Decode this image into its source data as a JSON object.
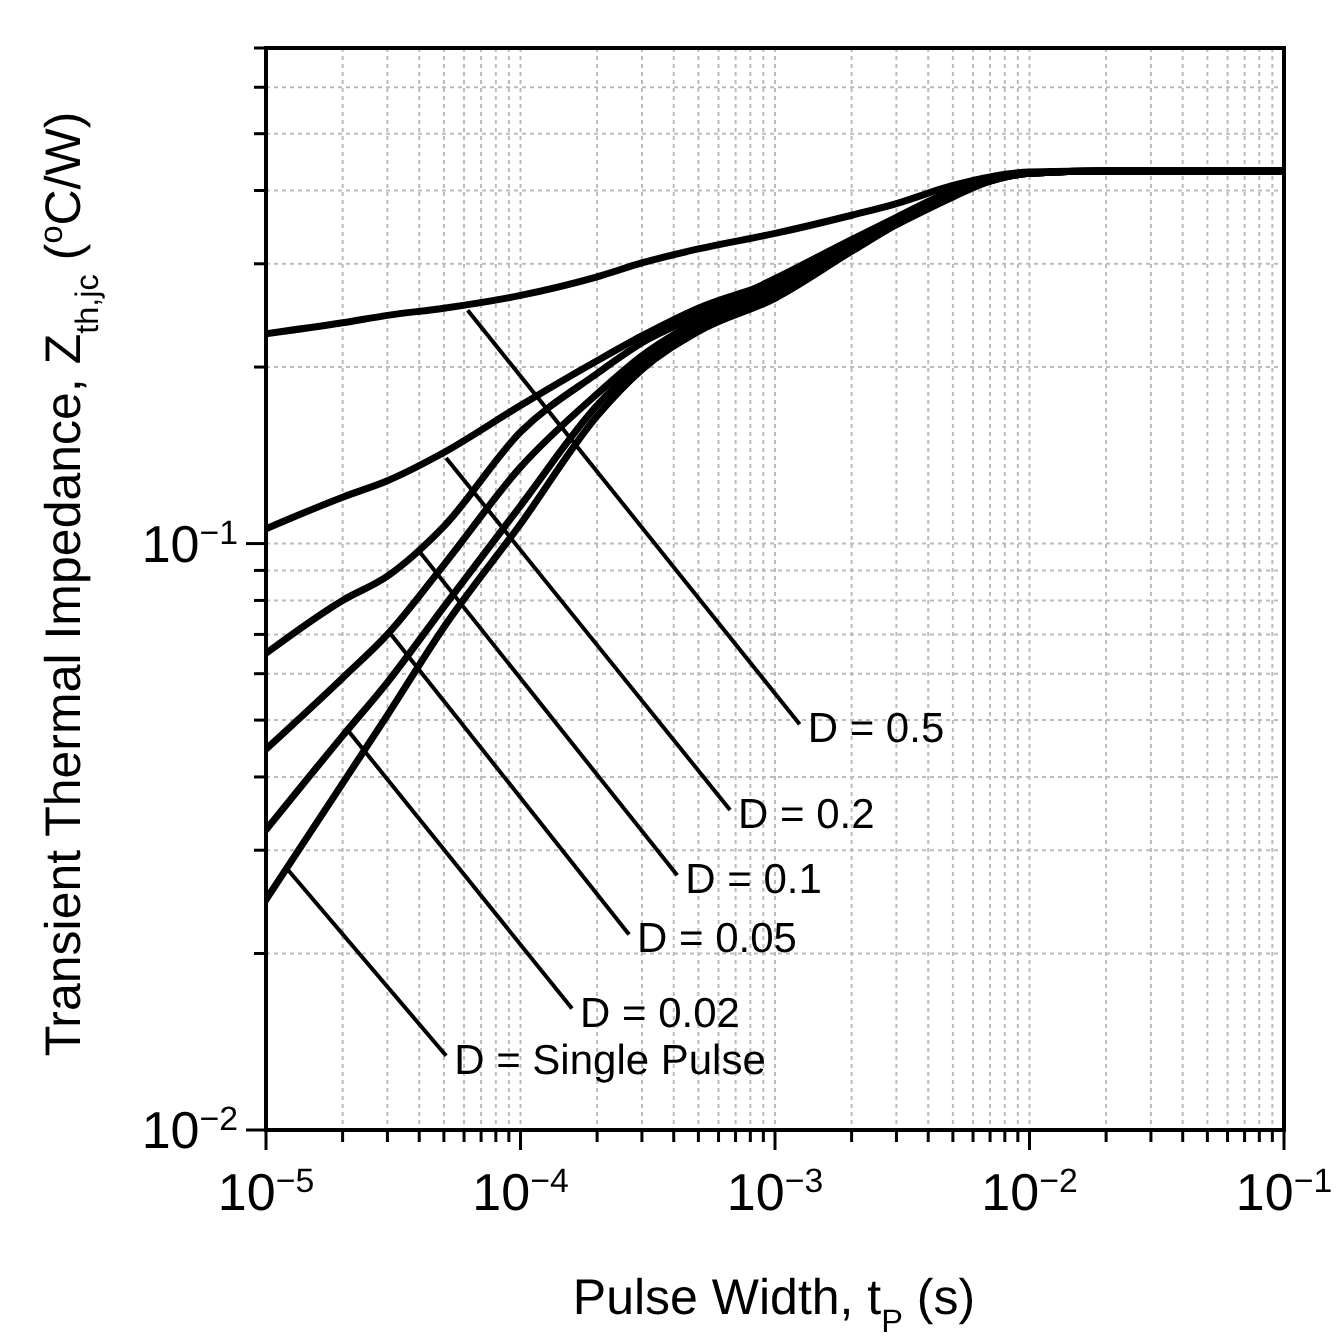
{
  "chart_data": {
    "type": "line",
    "xlabel": "Pulse Width, t$_{P}$ (s)",
    "ylabel": "Transient Thermal Impedance, Z$_{th,jc}$ ($^{o}$C/W)",
    "log": "xy",
    "grid": true,
    "xlim": [
      1e-05,
      0.1
    ],
    "ylim": [
      0.01,
      0.7
    ],
    "xticks": [
      {
        "value": 1e-05,
        "label": "10$^{−5}$"
      },
      {
        "value": 2e-05,
        "label": null
      },
      {
        "value": 3e-05,
        "label": null
      },
      {
        "value": 4e-05,
        "label": null
      },
      {
        "value": 5e-05,
        "label": null
      },
      {
        "value": 6e-05,
        "label": null
      },
      {
        "value": 7e-05,
        "label": null
      },
      {
        "value": 8e-05,
        "label": null
      },
      {
        "value": 9e-05,
        "label": null
      },
      {
        "value": 0.0001,
        "label": "10$^{−4}$"
      },
      {
        "value": 0.0002,
        "label": null
      },
      {
        "value": 0.0003,
        "label": null
      },
      {
        "value": 0.0004,
        "label": null
      },
      {
        "value": 0.0005,
        "label": null
      },
      {
        "value": 0.0006,
        "label": null
      },
      {
        "value": 0.0007,
        "label": null
      },
      {
        "value": 0.0008,
        "label": null
      },
      {
        "value": 0.0009,
        "label": null
      },
      {
        "value": 0.001,
        "label": "10$^{−3}$"
      },
      {
        "value": 0.002,
        "label": null
      },
      {
        "value": 0.003,
        "label": null
      },
      {
        "value": 0.004,
        "label": null
      },
      {
        "value": 0.005,
        "label": null
      },
      {
        "value": 0.006,
        "label": null
      },
      {
        "value": 0.007,
        "label": null
      },
      {
        "value": 0.008,
        "label": null
      },
      {
        "value": 0.009,
        "label": null
      },
      {
        "value": 0.01,
        "label": "10$^{−2}$"
      },
      {
        "value": 0.02,
        "label": null
      },
      {
        "value": 0.03,
        "label": null
      },
      {
        "value": 0.04,
        "label": null
      },
      {
        "value": 0.05,
        "label": null
      },
      {
        "value": 0.06,
        "label": null
      },
      {
        "value": 0.07,
        "label": null
      },
      {
        "value": 0.08,
        "label": null
      },
      {
        "value": 0.09,
        "label": null
      },
      {
        "value": 0.1,
        "label": "10$^{−1}$"
      }
    ],
    "yticks": [
      {
        "value": 0.01,
        "label": "10$^{−2}$"
      },
      {
        "value": 0.02,
        "label": null
      },
      {
        "value": 0.03,
        "label": null
      },
      {
        "value": 0.04,
        "label": null
      },
      {
        "value": 0.05,
        "label": null
      },
      {
        "value": 0.06,
        "label": null
      },
      {
        "value": 0.07,
        "label": null
      },
      {
        "value": 0.08,
        "label": null
      },
      {
        "value": 0.09,
        "label": null
      },
      {
        "value": 0.1,
        "label": "10$^{−1}$"
      },
      {
        "value": 0.2,
        "label": null
      },
      {
        "value": 0.3,
        "label": null
      },
      {
        "value": 0.4,
        "label": null
      },
      {
        "value": 0.5,
        "label": null
      },
      {
        "value": 0.6,
        "label": null
      },
      {
        "value": 0.7,
        "label": null
      }
    ],
    "x": [
      1e-05,
      2e-05,
      3e-05,
      5e-05,
      0.0001,
      0.0002,
      0.0003,
      0.0005,
      0.001,
      0.002,
      0.003,
      0.005,
      0.007,
      0.01,
      0.02,
      0.1
    ],
    "series": [
      {
        "color": "#000000",
        "values": [
          0.228,
          0.238,
          0.245,
          0.252,
          0.265,
          0.285,
          0.301,
          0.318,
          0.338,
          0.363,
          0.38,
          0.408,
          0.422,
          0.43,
          0.432,
          0.432
        ]
      },
      {
        "color": "#000000",
        "values": [
          0.106,
          0.12,
          0.128,
          0.143,
          0.172,
          0.205,
          0.226,
          0.252,
          0.28,
          0.322,
          0.35,
          0.39,
          0.415,
          0.428,
          0.432,
          0.432
        ]
      },
      {
        "color": "#000000",
        "values": [
          0.065,
          0.08,
          0.088,
          0.107,
          0.155,
          0.195,
          0.22,
          0.245,
          0.283,
          0.33,
          0.36,
          0.4,
          0.418,
          0.428,
          0.432,
          0.432
        ]
      },
      {
        "color": "#000000",
        "values": [
          0.0446,
          0.059,
          0.07,
          0.092,
          0.135,
          0.18,
          0.209,
          0.24,
          0.275,
          0.325,
          0.357,
          0.398,
          0.417,
          0.428,
          0.432,
          0.432
        ]
      },
      {
        "color": "#000000",
        "values": [
          0.0325,
          0.047,
          0.058,
          0.078,
          0.116,
          0.172,
          0.204,
          0.236,
          0.268,
          0.32,
          0.353,
          0.396,
          0.416,
          0.428,
          0.432,
          0.432
        ]
      },
      {
        "color": "#000000",
        "values": [
          0.0247,
          0.039,
          0.051,
          0.072,
          0.108,
          0.165,
          0.198,
          0.23,
          0.262,
          0.315,
          0.35,
          0.394,
          0.415,
          0.428,
          0.432,
          0.432
        ]
      }
    ],
    "line_style": "solid",
    "annotations": [
      {
        "text": "D = 0.5",
        "x": 6.2e-05,
        "y": 0.25
      },
      {
        "text": "D = 0.2",
        "x": 5.1e-05,
        "y": 0.14
      },
      {
        "text": "D = 0.1",
        "x": 4e-05,
        "y": 0.097
      },
      {
        "text": "D = 0.05",
        "x": 3.1e-05,
        "y": 0.07
      },
      {
        "text": "D = 0.02",
        "x": 2.1e-05,
        "y": 0.048
      },
      {
        "text": "D = Single Pulse",
        "x": 1.2e-05,
        "y": 0.028
      }
    ]
  }
}
